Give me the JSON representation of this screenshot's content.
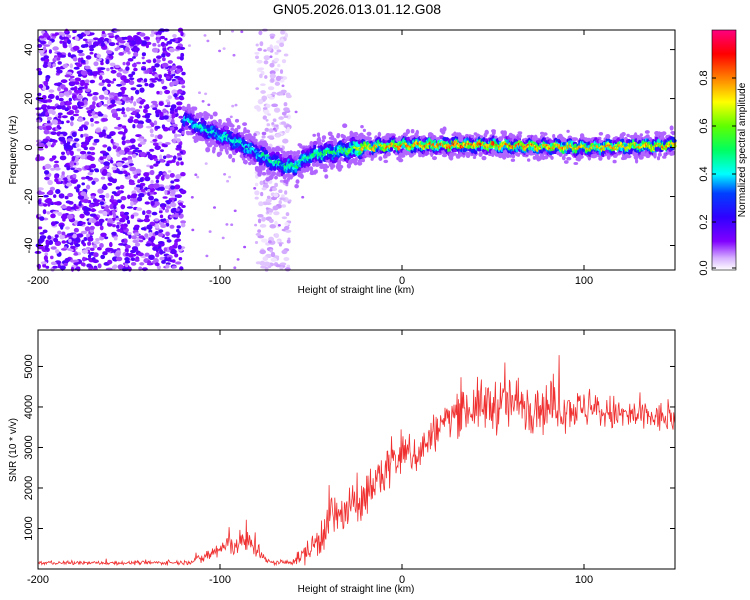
{
  "title": "GN05.2026.013.01.12.G08",
  "chart_data": [
    {
      "type": "heatmap",
      "xlabel": "Height of straight line (km)",
      "ylabel": "Frequency (Hz)",
      "xlim": [
        -200,
        150
      ],
      "ylim": [
        -50,
        48
      ],
      "x_ticks": [
        -200,
        -100,
        0,
        100
      ],
      "y_ticks": [
        -40,
        -20,
        0,
        20,
        40
      ],
      "colorbar": {
        "label": "Normalized spectral amplitude",
        "range": [
          0,
          1
        ],
        "ticks": [
          0.0,
          0.2,
          0.4,
          0.6,
          0.8
        ],
        "tick_labels": [
          "0.0",
          "0.2",
          "0.4",
          "0.6",
          "0.8"
        ],
        "colors": [
          "#ffffff",
          "#8000ff",
          "#0000ff",
          "#00ffff",
          "#00ff00",
          "#ffff00",
          "#ff8000",
          "#ff0000",
          "#ff0080"
        ]
      },
      "ridge": {
        "x": [
          -120,
          -110,
          -100,
          -90,
          -80,
          -70,
          -60,
          -50,
          -40,
          -30,
          -20,
          0,
          50,
          100,
          150
        ],
        "frequency": [
          12,
          8,
          5,
          2,
          -2,
          -6,
          -8,
          -3,
          -2,
          -1,
          0,
          1,
          1,
          0,
          1
        ],
        "peak_amplitude": [
          0.4,
          0.45,
          0.45,
          0.45,
          0.45,
          0.5,
          0.5,
          0.5,
          0.55,
          0.6,
          0.8,
          0.85,
          0.85,
          0.8,
          0.8
        ]
      },
      "noise_regions": [
        {
          "x_range": [
            -200,
            -120
          ],
          "y_range": [
            -50,
            48
          ],
          "amplitude": 0.15
        },
        {
          "x_range": [
            -80,
            -62
          ],
          "y_range": [
            -50,
            48
          ],
          "amplitude": 0.05
        }
      ]
    },
    {
      "type": "line",
      "xlabel": "Height of straight line (km)",
      "ylabel": "SNR (10 * v/v)",
      "xlim": [
        -200,
        150
      ],
      "ylim": [
        0,
        5900
      ],
      "x_ticks": [
        -200,
        -100,
        0,
        100
      ],
      "y_ticks": [
        1000,
        2000,
        3000,
        4000,
        5000
      ],
      "series": [
        {
          "name": "SNR",
          "color": "#f03030",
          "x": [
            -200,
            -150,
            -120,
            -110,
            -100,
            -90,
            -80,
            -75,
            -70,
            -60,
            -50,
            -45,
            -40,
            -35,
            -30,
            -25,
            -20,
            -15,
            -10,
            -5,
            0,
            10,
            20,
            30,
            40,
            60,
            80,
            100,
            120,
            150
          ],
          "y": [
            150,
            150,
            160,
            250,
            500,
            650,
            600,
            200,
            150,
            170,
            500,
            800,
            1300,
            1300,
            1400,
            1600,
            1800,
            2100,
            2400,
            2700,
            2800,
            2900,
            3500,
            3900,
            4000,
            4100,
            4000,
            3950,
            3800,
            3700
          ],
          "noise_amplitude": [
            50,
            50,
            60,
            150,
            300,
            350,
            400,
            100,
            60,
            80,
            400,
            600,
            700,
            700,
            600,
            600,
            600,
            600,
            700,
            700,
            700,
            600,
            500,
            600,
            700,
            800,
            700,
            500,
            500,
            400
          ]
        }
      ]
    }
  ]
}
